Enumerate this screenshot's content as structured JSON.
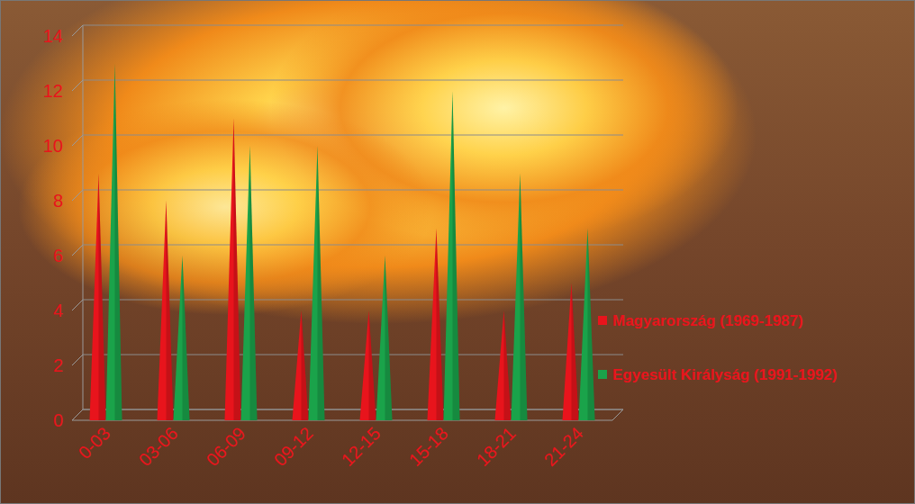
{
  "chart_data": {
    "type": "bar",
    "categories": [
      "0-03",
      "03-06",
      "06-09",
      "09-12",
      "12-15",
      "15-18",
      "18-21",
      "21-24"
    ],
    "series": [
      {
        "name": "Magyarország (1969-1987)",
        "color": "#e8141c",
        "values": [
          9,
          8,
          11,
          4,
          4,
          7,
          4,
          5
        ]
      },
      {
        "name": "Egyesült Királyság (1991-1992)",
        "color": "#1aa34a",
        "values": [
          13,
          6,
          10,
          10,
          6,
          12,
          9,
          7
        ]
      }
    ],
    "ylim": [
      0,
      14
    ],
    "yticks": [
      0,
      2,
      4,
      6,
      8,
      10,
      12,
      14
    ],
    "grid": true,
    "legend": "right"
  }
}
